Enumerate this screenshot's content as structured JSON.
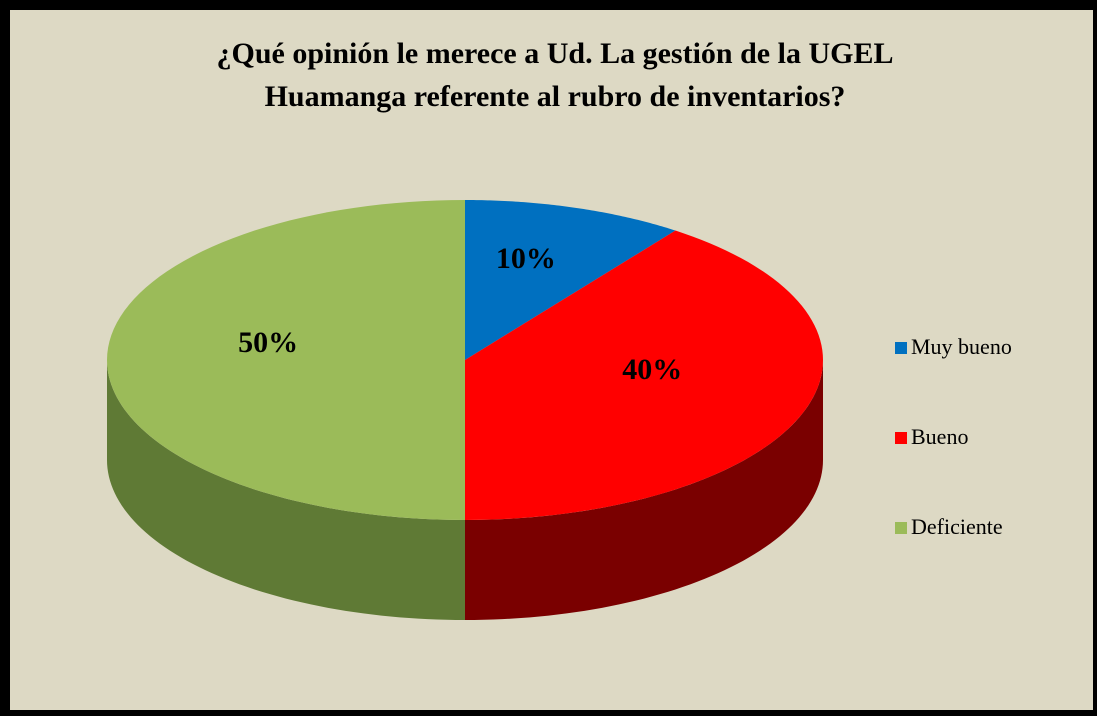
{
  "chart_data": {
    "type": "pie",
    "title": "¿Qué opinión le merece a Ud. La gestión de la UGEL Huamanga referente al rubro de inventarios?",
    "categories": [
      "Muy bueno",
      "Bueno",
      "Deficiente"
    ],
    "values": [
      10,
      40,
      50
    ],
    "value_labels": [
      "10%",
      "40%",
      "50%"
    ],
    "colors": [
      "#0070c0",
      "#ff0000",
      "#9bbb59"
    ],
    "side_colors": [
      "#003a66",
      "#7a0000",
      "#5f7a35"
    ],
    "legend": "right"
  }
}
